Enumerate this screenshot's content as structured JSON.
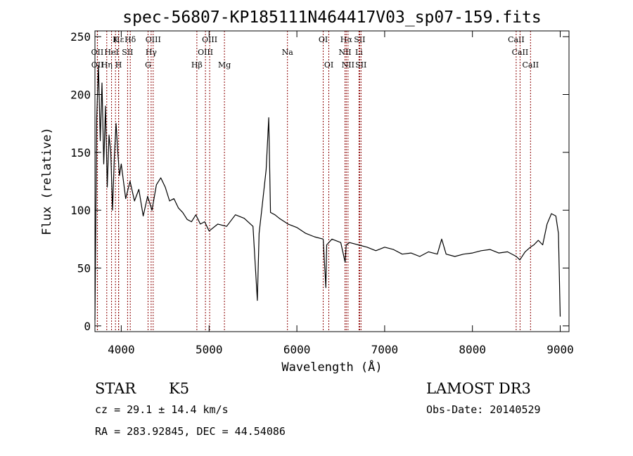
{
  "chart_data": {
    "type": "line",
    "title": "spec-56807-KP185111N464417V03_sp07-159.fits",
    "xlabel": "Wavelength (Å)",
    "ylabel": "Flux (relative)",
    "xlim": [
      3700,
      9100
    ],
    "ylim": [
      -5,
      255
    ],
    "xticks": [
      4000,
      5000,
      6000,
      7000,
      8000,
      9000
    ],
    "yticks": [
      0,
      50,
      100,
      150,
      200,
      250
    ],
    "grid": false,
    "legend": "none",
    "line_color": "#000000",
    "marker_color": "#8b0000",
    "series": [
      {
        "x": [
          3700,
          3720,
          3740,
          3760,
          3780,
          3800,
          3820,
          3840,
          3860,
          3880,
          3900,
          3920,
          3940,
          3960,
          3980,
          4000,
          4050,
          4100,
          4150,
          4200,
          4250,
          4300,
          4350,
          4400,
          4450,
          4500,
          4550,
          4600,
          4650,
          4700,
          4750,
          4800,
          4850,
          4900,
          4950,
          5000,
          5100,
          5200,
          5300,
          5400,
          5500,
          5550,
          5570,
          5600,
          5650,
          5680,
          5700,
          5750,
          5800,
          5900,
          6000,
          6100,
          6200,
          6300,
          6330,
          6340,
          6400,
          6500,
          6550,
          6563,
          6600,
          6700,
          6800,
          6900,
          7000,
          7100,
          7200,
          7300,
          7400,
          7500,
          7600,
          7650,
          7700,
          7800,
          7900,
          8000,
          8100,
          8200,
          8300,
          8400,
          8500,
          8540,
          8600,
          8660,
          8700,
          8750,
          8800,
          8850,
          8900,
          8950,
          8980,
          9000
        ],
        "y": [
          5,
          180,
          225,
          160,
          210,
          140,
          190,
          120,
          165,
          150,
          100,
          145,
          175,
          150,
          130,
          140,
          110,
          125,
          108,
          118,
          95,
          112,
          100,
          122,
          128,
          120,
          108,
          110,
          102,
          98,
          92,
          90,
          96,
          88,
          90,
          82,
          88,
          86,
          96,
          93,
          86,
          22,
          80,
          100,
          135,
          180,
          98,
          96,
          93,
          88,
          85,
          80,
          77,
          75,
          33,
          70,
          75,
          72,
          55,
          70,
          72,
          70,
          68,
          65,
          68,
          66,
          62,
          63,
          60,
          64,
          62,
          75,
          62,
          60,
          62,
          63,
          65,
          66,
          63,
          64,
          60,
          57,
          64,
          68,
          70,
          74,
          70,
          88,
          97,
          95,
          80,
          8
        ]
      }
    ],
    "line_markers": [
      {
        "label": "Hε",
        "x": 3970,
        "row": 0
      },
      {
        "label": "Hδ",
        "x": 4102,
        "row": 0
      },
      {
        "label": "K",
        "x": 3934,
        "row": 0
      },
      {
        "label": "OIII",
        "x": 4363,
        "row": 0
      },
      {
        "label": "OIII",
        "x": 5007,
        "row": 0
      },
      {
        "label": "OI",
        "x": 6300,
        "row": 0
      },
      {
        "label": "Hα",
        "x": 6563,
        "row": 0
      },
      {
        "label": "SII",
        "x": 6716,
        "row": 0
      },
      {
        "label": "CaII",
        "x": 8498,
        "row": 0
      },
      {
        "label": "OII",
        "x": 3727,
        "row": 1
      },
      {
        "label": "HeI",
        "x": 3889,
        "row": 1
      },
      {
        "label": "SII",
        "x": 4072,
        "row": 1
      },
      {
        "label": "Hγ",
        "x": 4340,
        "row": 1
      },
      {
        "label": "OIII",
        "x": 4959,
        "row": 1
      },
      {
        "label": "Na",
        "x": 5893,
        "row": 1
      },
      {
        "label": "NII",
        "x": 6548,
        "row": 1
      },
      {
        "label": "Li",
        "x": 6708,
        "row": 1
      },
      {
        "label": "CaII",
        "x": 8542,
        "row": 1
      },
      {
        "label": "OII",
        "x": 3729,
        "row": 2
      },
      {
        "label": "Hη",
        "x": 3835,
        "row": 2
      },
      {
        "label": "H",
        "x": 3969,
        "row": 2
      },
      {
        "label": "G",
        "x": 4305,
        "row": 2
      },
      {
        "label": "Hβ",
        "x": 4861,
        "row": 2
      },
      {
        "label": "Mg",
        "x": 5175,
        "row": 2
      },
      {
        "label": "OI",
        "x": 6364,
        "row": 2
      },
      {
        "label": "NII",
        "x": 6583,
        "row": 2
      },
      {
        "label": "SII",
        "x": 6731,
        "row": 2
      },
      {
        "label": "CaII",
        "x": 8662,
        "row": 2
      }
    ]
  },
  "info": {
    "class": "STAR",
    "subclass": "K5",
    "survey": "LAMOST DR3",
    "cz": "cz = 29.1 ± 14.4 km/s",
    "obs_date": "Obs-Date: 20140529",
    "coords": "RA = 283.92845, DEC =  44.54086"
  }
}
